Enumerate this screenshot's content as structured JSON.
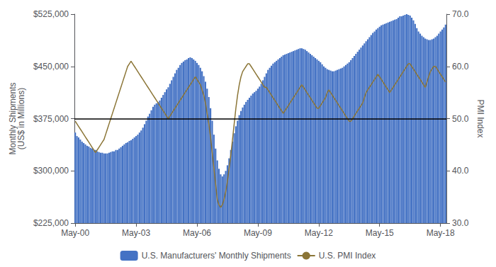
{
  "chart_data": {
    "type": "bar",
    "background_color": "#ffffff",
    "categories": [
      "May-00",
      null,
      null,
      null,
      null,
      null,
      null,
      null,
      null,
      null,
      null,
      null,
      null,
      null,
      null,
      null,
      null,
      null,
      null,
      null,
      null,
      null,
      null,
      null,
      null,
      null,
      null,
      null,
      null,
      null,
      null,
      null,
      null,
      null,
      null,
      null,
      "May-03",
      null,
      null,
      null,
      null,
      null,
      null,
      null,
      null,
      null,
      null,
      null,
      null,
      null,
      null,
      null,
      null,
      null,
      null,
      null,
      null,
      null,
      null,
      null,
      null,
      null,
      null,
      null,
      null,
      null,
      null,
      null,
      null,
      null,
      null,
      null,
      "May-06",
      null,
      null,
      null,
      null,
      null,
      null,
      null,
      null,
      null,
      null,
      null,
      null,
      null,
      null,
      null,
      null,
      null,
      null,
      null,
      null,
      null,
      null,
      null,
      null,
      null,
      null,
      null,
      null,
      null,
      null,
      null,
      null,
      null,
      null,
      null,
      "May-09",
      null,
      null,
      null,
      null,
      null,
      null,
      null,
      null,
      null,
      null,
      null,
      null,
      null,
      null,
      null,
      null,
      null,
      null,
      null,
      null,
      null,
      null,
      null,
      null,
      null,
      null,
      null,
      null,
      null,
      null,
      null,
      null,
      null,
      null,
      null,
      "May-12",
      null,
      null,
      null,
      null,
      null,
      null,
      null,
      null,
      null,
      null,
      null,
      null,
      null,
      null,
      null,
      null,
      null,
      null,
      null,
      null,
      null,
      null,
      null,
      null,
      null,
      null,
      null,
      null,
      null,
      null,
      null,
      null,
      null,
      null,
      null,
      "May-15",
      null,
      null,
      null,
      null,
      null,
      null,
      null,
      null,
      null,
      null,
      null,
      null,
      null,
      null,
      null,
      null,
      null,
      null,
      null,
      null,
      null,
      null,
      null,
      null,
      null,
      null,
      null,
      null,
      null,
      null,
      null,
      null,
      null,
      null,
      null,
      "May-18",
      null,
      null,
      null
    ],
    "ylabel": "Monthly Shipments\n(US$ in Millions)",
    "y2label": "PMI Index",
    "ylim": [
      225000,
      525000
    ],
    "yticks": [
      {
        "value": 225000,
        "label": "$225,000"
      },
      {
        "value": 300000,
        "label": "$300,000"
      },
      {
        "value": 375000,
        "label": "$375,000"
      },
      {
        "value": 450000,
        "label": "$450,000"
      },
      {
        "value": 525000,
        "label": "$525,000"
      }
    ],
    "y2lim": [
      30.0,
      70.0
    ],
    "y2ticks": [
      {
        "value": 30.0,
        "label": "30.0"
      },
      {
        "value": 40.0,
        "label": "40.0"
      },
      {
        "value": 50.0,
        "label": "50.0"
      },
      {
        "value": 60.0,
        "label": "60.0"
      },
      {
        "value": 70.0,
        "label": "70.0"
      }
    ],
    "grid": false,
    "legend": "bottom",
    "hlines": [
      {
        "y": 375000,
        "color": "#000000"
      }
    ],
    "series": [
      {
        "name": "U.S. Manufacturers' Monthly Shipments",
        "type": "bar",
        "color": "#4472C4",
        "values": [
          355000,
          350000,
          348000,
          345000,
          342000,
          340000,
          338000,
          336000,
          335000,
          333000,
          332000,
          330000,
          330000,
          328000,
          327000,
          326000,
          326000,
          325000,
          325000,
          325000,
          326000,
          327000,
          328000,
          328000,
          330000,
          330000,
          332000,
          334000,
          336000,
          338000,
          340000,
          341000,
          343000,
          344000,
          346000,
          348000,
          350000,
          352000,
          355000,
          358000,
          362000,
          367000,
          372000,
          378000,
          382000,
          387000,
          392000,
          395000,
          397000,
          399000,
          401000,
          405000,
          409000,
          413000,
          417000,
          420000,
          425000,
          430000,
          435000,
          440000,
          445000,
          448000,
          452000,
          455000,
          457000,
          459000,
          460000,
          462000,
          463000,
          462000,
          460000,
          458000,
          455000,
          452000,
          448000,
          443000,
          436000,
          428000,
          418000,
          406000,
          390000,
          372000,
          352000,
          332000,
          315000,
          303000,
          295000,
          292000,
          295000,
          300000,
          308000,
          318000,
          330000,
          342000,
          354000,
          364000,
          372000,
          380000,
          386000,
          391000,
          395000,
          399000,
          402000,
          405000,
          408000,
          411000,
          413000,
          415000,
          418000,
          421000,
          425000,
          430000,
          435000,
          440000,
          445000,
          448000,
          451000,
          454000,
          456000,
          458000,
          460000,
          462000,
          464000,
          466000,
          467000,
          468000,
          469000,
          470000,
          471000,
          472000,
          473000,
          474000,
          475000,
          476000,
          476000,
          475000,
          474000,
          472000,
          470000,
          468000,
          466000,
          464000,
          462000,
          460000,
          458000,
          456000,
          453000,
          450000,
          448000,
          446000,
          445000,
          444000,
          443000,
          443000,
          444000,
          445000,
          446000,
          447000,
          448000,
          450000,
          452000,
          454000,
          456000,
          459000,
          462000,
          465000,
          468000,
          471000,
          474000,
          477000,
          480000,
          483000,
          486000,
          489000,
          492000,
          495000,
          498000,
          500000,
          503000,
          505000,
          507000,
          509000,
          510000,
          511000,
          512000,
          513000,
          514000,
          515000,
          516000,
          517000,
          518000,
          520000,
          522000,
          522000,
          523000,
          524000,
          525000,
          524000,
          523000,
          520000,
          516000,
          511000,
          505000,
          500000,
          497000,
          494000,
          492000,
          490000,
          489000,
          488000,
          488000,
          489000,
          490000,
          492000,
          494000,
          497000,
          500000,
          503000,
          506000,
          510000
        ]
      },
      {
        "name": "U.S. PMI Index",
        "type": "line",
        "axis": "y2",
        "color": "#8B7536",
        "values": [
          49.5,
          49.0,
          48.5,
          48.0,
          47.5,
          47.0,
          46.5,
          46.0,
          45.5,
          45.0,
          44.5,
          44.0,
          43.5,
          44.0,
          44.5,
          45.0,
          45.5,
          46.0,
          47.0,
          48.0,
          49.0,
          50.0,
          51.0,
          52.0,
          53.0,
          54.0,
          55.0,
          56.0,
          57.0,
          58.0,
          59.0,
          60.0,
          60.5,
          61.0,
          60.5,
          60.0,
          59.5,
          59.0,
          58.5,
          58.0,
          57.5,
          57.0,
          56.5,
          56.0,
          55.5,
          55.0,
          54.5,
          54.0,
          53.5,
          53.0,
          52.5,
          52.0,
          51.5,
          51.0,
          50.5,
          50.0,
          50.5,
          51.0,
          51.5,
          52.0,
          52.5,
          53.0,
          53.5,
          54.0,
          54.5,
          55.0,
          55.5,
          56.0,
          56.5,
          57.0,
          57.5,
          58.0,
          57.5,
          57.0,
          56.5,
          55.5,
          54.5,
          53.0,
          51.0,
          49.0,
          46.5,
          43.5,
          40.5,
          37.5,
          34.5,
          33.5,
          33.0,
          33.5,
          34.5,
          36.0,
          38.0,
          40.5,
          43.0,
          46.0,
          49.0,
          52.0,
          54.5,
          56.5,
          58.0,
          59.0,
          59.5,
          60.0,
          60.5,
          60.5,
          60.0,
          59.5,
          59.0,
          58.5,
          58.0,
          57.5,
          57.0,
          56.5,
          56.0,
          56.0,
          55.5,
          55.0,
          54.5,
          54.0,
          53.5,
          53.0,
          52.5,
          52.0,
          51.5,
          51.0,
          51.5,
          52.0,
          52.5,
          53.0,
          53.5,
          54.0,
          54.5,
          55.0,
          55.5,
          56.0,
          56.5,
          56.0,
          55.5,
          55.0,
          54.5,
          54.0,
          53.5,
          53.0,
          52.5,
          52.0,
          52.0,
          52.5,
          53.0,
          53.5,
          54.0,
          55.0,
          55.5,
          55.0,
          54.5,
          54.0,
          53.5,
          53.0,
          52.5,
          52.0,
          51.5,
          51.0,
          50.5,
          50.0,
          49.5,
          49.5,
          50.0,
          50.5,
          51.0,
          51.5,
          52.0,
          52.5,
          53.0,
          54.0,
          55.0,
          55.5,
          56.0,
          56.5,
          57.0,
          57.5,
          58.0,
          58.5,
          58.0,
          57.5,
          57.0,
          56.5,
          56.0,
          55.5,
          55.0,
          55.5,
          56.0,
          56.5,
          57.0,
          57.5,
          58.0,
          58.5,
          59.0,
          59.5,
          60.0,
          60.5,
          60.5,
          60.0,
          59.5,
          59.0,
          58.5,
          58.0,
          57.5,
          57.0,
          56.5,
          56.0,
          57.0,
          58.0,
          59.0,
          59.5,
          60.0,
          60.0,
          59.5,
          59.0,
          58.5,
          58.0,
          57.5,
          57.0
        ]
      }
    ]
  }
}
